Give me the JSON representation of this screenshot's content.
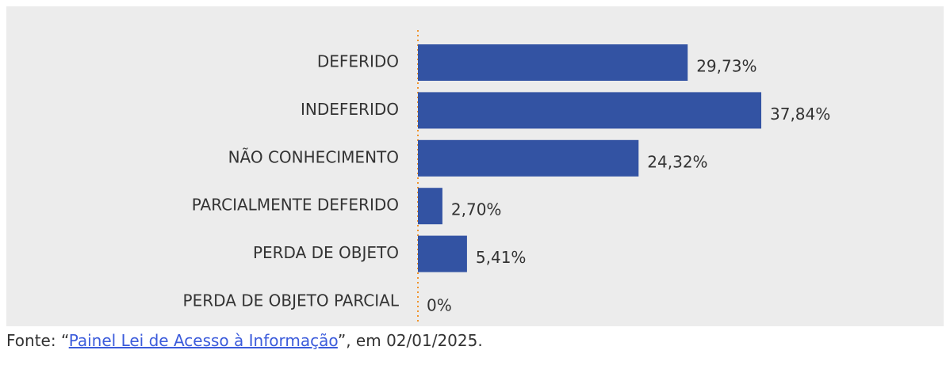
{
  "chart_data": {
    "type": "barh",
    "categories": [
      "DEFERIDO",
      "INDEFERIDO",
      "NÃO CONHECIMENTO",
      "PARCIALMENTE DEFERIDO",
      "PERDA DE OBJETO",
      "PERDA DE OBJETO PARCIAL"
    ],
    "values": [
      29.73,
      37.84,
      24.32,
      2.7,
      5.41,
      0
    ],
    "value_labels": [
      "29,73%",
      "37,84%",
      "24,32%",
      "2,70%",
      "5,41%",
      "0%"
    ],
    "color": "#3353a3"
  },
  "source": {
    "prefix": "Fonte: “",
    "link": "Painel Lei de Acesso à Informação",
    "suffix": "”, em 02/01/2025."
  }
}
